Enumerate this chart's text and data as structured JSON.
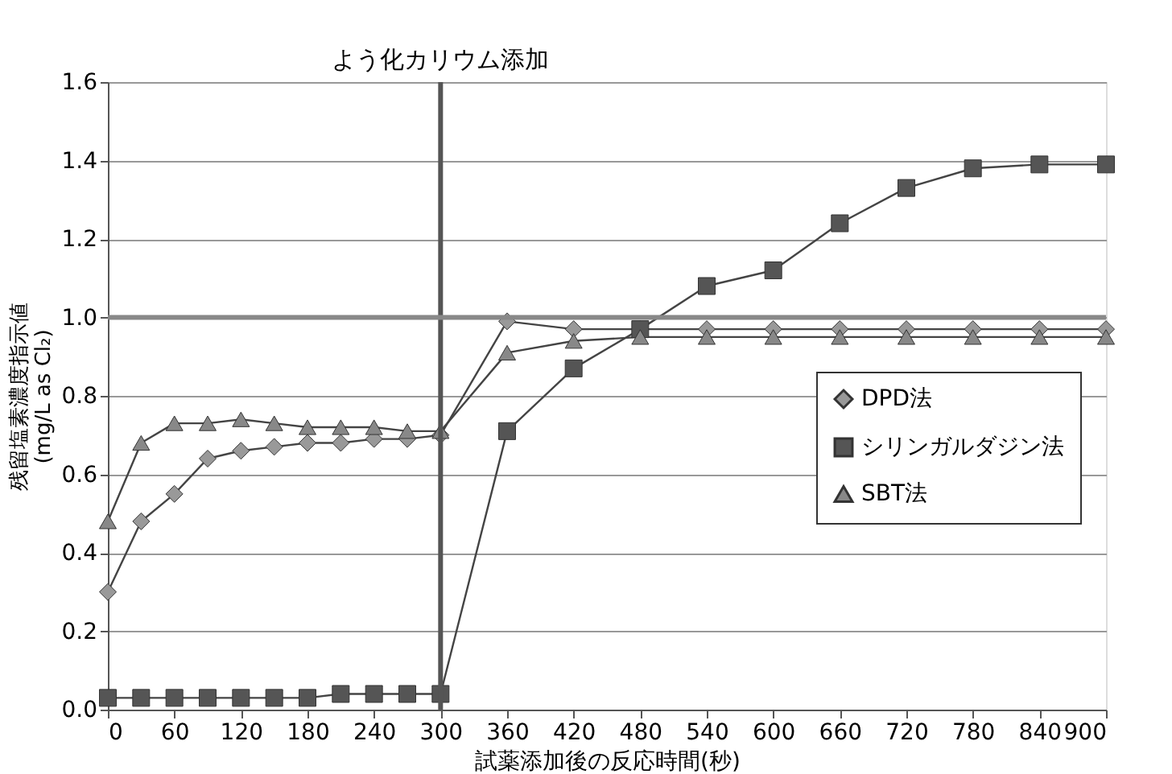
{
  "chart_data": {
    "type": "line",
    "xlabel": "試薬添加後の反応時間(秒)",
    "ylabel": "残留塩素濃度指示値\n(mg/L as Cl₂)",
    "x": [
      0,
      30,
      60,
      90,
      120,
      150,
      180,
      210,
      240,
      270,
      300,
      360,
      420,
      480,
      540,
      600,
      660,
      720,
      780,
      840,
      900
    ],
    "series": [
      {
        "name": "DPD法",
        "color": "#999999",
        "marker": "diamond",
        "values": [
          0.3,
          0.48,
          0.55,
          0.64,
          0.66,
          0.67,
          0.68,
          0.68,
          0.69,
          0.69,
          0.7,
          0.99,
          0.97,
          0.97,
          0.97,
          0.97,
          0.97,
          0.97,
          0.97,
          0.97,
          0.97
        ]
      },
      {
        "name": "シリンガルダジン法",
        "color": "#555555",
        "marker": "square",
        "values": [
          0.03,
          0.03,
          0.03,
          0.03,
          0.03,
          0.03,
          0.03,
          0.04,
          0.04,
          0.04,
          0.04,
          0.71,
          0.87,
          0.97,
          1.08,
          1.12,
          1.24,
          1.33,
          1.38,
          1.39,
          1.39
        ]
      },
      {
        "name": "SBT法",
        "color": "#888888",
        "marker": "triangle",
        "values": [
          0.48,
          0.68,
          0.73,
          0.73,
          0.74,
          0.73,
          0.72,
          0.72,
          0.72,
          0.71,
          0.71,
          0.91,
          0.94,
          0.95,
          0.95,
          0.95,
          0.95,
          0.95,
          0.95,
          0.95,
          0.95
        ]
      }
    ],
    "xlim": [
      0,
      900
    ],
    "xticks": [
      0,
      60,
      120,
      180,
      240,
      300,
      360,
      420,
      480,
      540,
      600,
      660,
      720,
      780,
      840,
      900
    ],
    "ylim": [
      0,
      1.6
    ],
    "yticks": [
      {
        "value": 0,
        "label": "0.0"
      },
      0.2,
      0.4,
      0.6,
      0.8,
      {
        "value": 1,
        "label": "1.0"
      },
      1.2,
      1.4,
      1.6
    ],
    "ref_lines": [
      {
        "axis": "x",
        "value": 300,
        "label": "よう化カリウム添加",
        "color": "#555555"
      },
      {
        "axis": "y",
        "value": 1.0,
        "label": null,
        "color": "#888888"
      }
    ],
    "grid": "y",
    "legend": "right",
    "line_style": "solid"
  }
}
